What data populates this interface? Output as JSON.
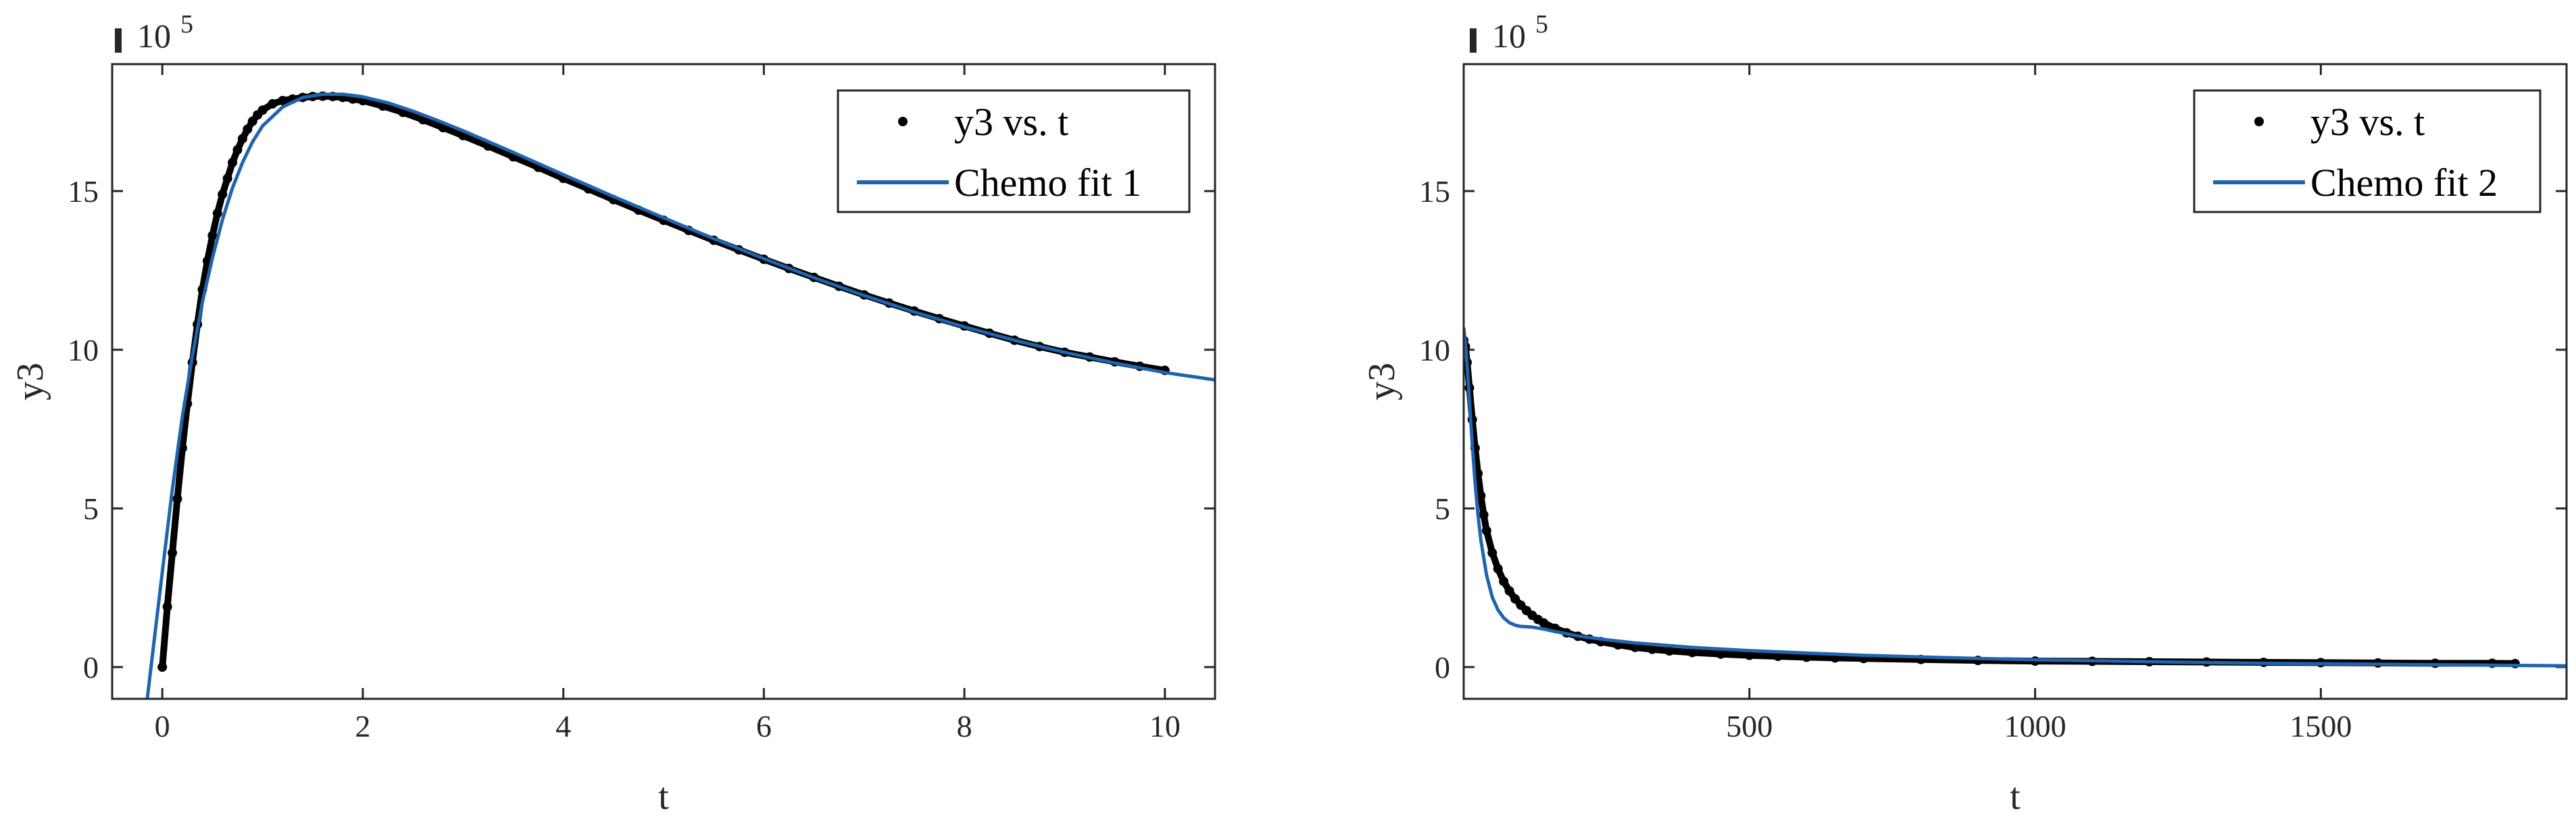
{
  "chart_data": [
    {
      "type": "scatter",
      "title": "",
      "xlabel": "t",
      "ylabel": "y3",
      "y_exponent_label": "10",
      "y_exponent_power": "5",
      "xlim": [
        -0.5,
        10.5
      ],
      "ylim": [
        -1,
        19
      ],
      "xticks": [
        0,
        2,
        4,
        6,
        8,
        10
      ],
      "yticks": [
        0,
        5,
        10,
        15
      ],
      "grid": false,
      "legend_position": "top-right",
      "series": [
        {
          "name": "y3 vs. t",
          "kind": "points",
          "color": "#000000",
          "x": [
            0,
            0.05,
            0.1,
            0.15,
            0.2,
            0.25,
            0.3,
            0.35,
            0.4,
            0.45,
            0.5,
            0.55,
            0.6,
            0.65,
            0.7,
            0.75,
            0.8,
            0.85,
            0.9,
            0.95,
            1.0,
            1.1,
            1.2,
            1.3,
            1.4,
            1.5,
            1.6,
            1.7,
            1.8,
            1.9,
            2.0,
            2.2,
            2.4,
            2.6,
            2.8,
            3.0,
            3.25,
            3.5,
            3.75,
            4.0,
            4.25,
            4.5,
            4.75,
            5.0,
            5.25,
            5.5,
            5.75,
            6.0,
            6.25,
            6.5,
            6.75,
            7.0,
            7.25,
            7.5,
            7.75,
            8.0,
            8.25,
            8.5,
            8.75,
            9.0,
            9.25,
            9.5,
            9.75,
            10.0
          ],
          "y": [
            0.0,
            1.9,
            3.6,
            5.3,
            6.9,
            8.3,
            9.6,
            10.8,
            11.9,
            12.8,
            13.6,
            14.3,
            14.9,
            15.4,
            15.9,
            16.3,
            16.65,
            16.95,
            17.2,
            17.4,
            17.55,
            17.75,
            17.85,
            17.9,
            17.95,
            17.98,
            17.99,
            17.98,
            17.95,
            17.9,
            17.85,
            17.68,
            17.48,
            17.25,
            17.0,
            16.75,
            16.42,
            16.08,
            15.75,
            15.4,
            15.07,
            14.73,
            14.4,
            14.08,
            13.76,
            13.45,
            13.15,
            12.85,
            12.56,
            12.28,
            12.0,
            11.73,
            11.47,
            11.22,
            10.98,
            10.75,
            10.52,
            10.3,
            10.1,
            9.92,
            9.77,
            9.62,
            9.48,
            9.35
          ]
        },
        {
          "name": "Chemo fit 1",
          "kind": "line",
          "color": "#1f64ad",
          "x": [
            -0.15,
            0.0,
            0.1,
            0.2,
            0.3,
            0.4,
            0.5,
            0.6,
            0.7,
            0.8,
            0.9,
            1.0,
            1.2,
            1.4,
            1.6,
            1.8,
            2.0,
            2.25,
            2.5,
            2.75,
            3.0,
            3.5,
            4.0,
            4.5,
            5.0,
            5.5,
            6.0,
            6.5,
            7.0,
            7.5,
            8.0,
            8.5,
            9.0,
            9.5,
            10.0,
            10.5
          ],
          "y": [
            -1.0,
            3.0,
            5.6,
            7.9,
            9.8,
            11.5,
            12.9,
            14.1,
            15.1,
            15.9,
            16.55,
            17.05,
            17.65,
            17.95,
            18.05,
            18.05,
            17.97,
            17.78,
            17.52,
            17.22,
            16.9,
            16.22,
            15.52,
            14.83,
            14.16,
            13.5,
            12.87,
            12.27,
            11.71,
            11.19,
            10.72,
            10.3,
            9.92,
            9.58,
            9.28,
            9.05
          ]
        }
      ]
    },
    {
      "type": "scatter",
      "title": "",
      "xlabel": "t",
      "ylabel": "y3",
      "y_exponent_label": "10",
      "y_exponent_power": "5",
      "xlim": [
        0,
        1930
      ],
      "ylim": [
        -1,
        19
      ],
      "xticks": [
        500,
        1000,
        1500
      ],
      "yticks": [
        0,
        5,
        10,
        15
      ],
      "grid": false,
      "legend_position": "top-right",
      "series": [
        {
          "name": "y3 vs. t",
          "kind": "points",
          "color": "#000000",
          "x": [
            0,
            3,
            6,
            10,
            15,
            20,
            25,
            30,
            35,
            40,
            50,
            60,
            70,
            80,
            90,
            100,
            110,
            120,
            130,
            140,
            160,
            180,
            200,
            220,
            240,
            270,
            300,
            330,
            360,
            400,
            450,
            500,
            550,
            600,
            650,
            700,
            800,
            900,
            1000,
            1100,
            1200,
            1300,
            1400,
            1500,
            1600,
            1700,
            1800,
            1840
          ],
          "y": [
            10.3,
            10.1,
            9.6,
            8.8,
            7.8,
            6.9,
            6.1,
            5.4,
            4.8,
            4.3,
            3.6,
            3.1,
            2.7,
            2.4,
            2.15,
            1.95,
            1.78,
            1.63,
            1.5,
            1.39,
            1.22,
            1.08,
            0.97,
            0.88,
            0.8,
            0.7,
            0.62,
            0.56,
            0.51,
            0.46,
            0.41,
            0.37,
            0.34,
            0.31,
            0.29,
            0.27,
            0.24,
            0.21,
            0.19,
            0.18,
            0.17,
            0.16,
            0.15,
            0.14,
            0.13,
            0.12,
            0.12,
            0.11
          ]
        },
        {
          "name": "Chemo fit 2",
          "kind": "line",
          "color": "#1f64ad",
          "x": [
            0,
            3,
            6,
            10,
            15,
            20,
            25,
            30,
            40,
            50,
            60,
            70,
            80,
            90,
            100,
            110,
            120,
            140,
            160,
            180,
            200,
            250,
            300,
            400,
            500,
            600,
            700,
            800,
            900,
            1000,
            1200,
            1400,
            1600,
            1800,
            1930
          ],
          "y": [
            10.7,
            10.2,
            9.5,
            8.4,
            7.0,
            5.8,
            4.8,
            4.0,
            2.9,
            2.2,
            1.8,
            1.55,
            1.4,
            1.32,
            1.28,
            1.27,
            1.26,
            1.2,
            1.12,
            1.05,
            0.98,
            0.86,
            0.76,
            0.62,
            0.52,
            0.44,
            0.37,
            0.32,
            0.27,
            0.23,
            0.17,
            0.12,
            0.09,
            0.06,
            0.04
          ]
        }
      ]
    }
  ]
}
